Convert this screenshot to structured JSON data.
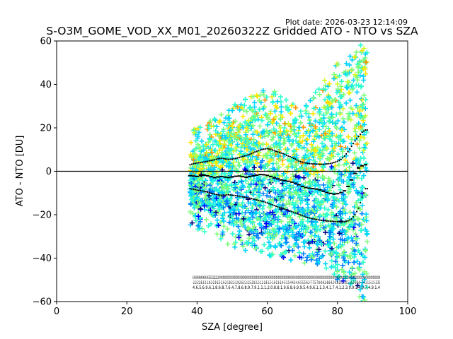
{
  "chart_data": {
    "type": "scatter",
    "plot_date": "Plot date: 2026-03-23 12:14:09",
    "title": "S-O3M_GOME_VOD_XX_M01_20260322Z Gridded ATO - NTO vs SZA",
    "xlabel": "SZA [degree]",
    "ylabel": "ATO - NTO [DU]",
    "xlim": [
      0,
      100
    ],
    "ylim": [
      -60,
      60
    ],
    "xticks": [
      "0",
      "20",
      "40",
      "60",
      "80",
      "100"
    ],
    "yticks": [
      "60",
      "40",
      "20",
      "0",
      "−20",
      "−40",
      "−60"
    ],
    "grid": false,
    "marker": "plus",
    "colormap": [
      "#00007f",
      "#0000ff",
      "#0080ff",
      "#00d4ff",
      "#29ffce",
      "#7dff7a",
      "#ceff29",
      "#ffe600",
      "#ff9400"
    ],
    "zero_line": 0,
    "scatter_extent": {
      "x": [
        38,
        88.5
      ],
      "core_upper": [
        [
          38,
          8
        ],
        [
          50,
          20
        ],
        [
          60,
          30
        ],
        [
          70,
          18
        ],
        [
          75,
          30
        ],
        [
          80,
          40
        ],
        [
          85,
          45
        ],
        [
          88,
          55
        ]
      ],
      "core_lower": [
        [
          38,
          -15
        ],
        [
          50,
          -25
        ],
        [
          60,
          -30
        ],
        [
          70,
          -32
        ],
        [
          75,
          -35
        ],
        [
          80,
          -40
        ],
        [
          85,
          -45
        ],
        [
          88,
          -55
        ]
      ]
    },
    "series": [
      {
        "role": "mean",
        "x": [
          38,
          39,
          40,
          41,
          42,
          43,
          44,
          45,
          46,
          47,
          48,
          49,
          50,
          51,
          52,
          53,
          54,
          55,
          56,
          57,
          58,
          59,
          60,
          61,
          62,
          63,
          64,
          65,
          66,
          67,
          68,
          69,
          70,
          71,
          72,
          73,
          74,
          75,
          76,
          77,
          78,
          79,
          80,
          81,
          82,
          83,
          84,
          85,
          86,
          87,
          88
        ],
        "y": [
          -2,
          -2.2,
          -2.4,
          -2,
          -1.8,
          -2.1,
          -2.5,
          -2.9,
          -2.6,
          -2.4,
          -2.7,
          -2.9,
          -2.6,
          -2.3,
          -2.2,
          -2.5,
          -2.8,
          -2.4,
          -2.1,
          -1.8,
          -1.5,
          -1.6,
          -1.9,
          -2.4,
          -3,
          -3.5,
          -4,
          -4.3,
          -4.6,
          -5,
          -5.5,
          -6.2,
          -7,
          -7.5,
          -7.8,
          -8,
          -8.2,
          -8.6,
          -9.2,
          -9.8,
          -10.2,
          -10.5,
          -10.3,
          -9.8,
          -9,
          -7,
          -4,
          -1,
          1.5,
          2.5,
          3
        ]
      },
      {
        "role": "mean + 1 sigma",
        "x": [
          38,
          39,
          40,
          41,
          42,
          43,
          44,
          45,
          46,
          47,
          48,
          49,
          50,
          51,
          52,
          53,
          54,
          55,
          56,
          57,
          58,
          59,
          60,
          61,
          62,
          63,
          64,
          65,
          66,
          67,
          68,
          69,
          70,
          71,
          72,
          73,
          74,
          75,
          76,
          77,
          78,
          79,
          80,
          81,
          82,
          83,
          84,
          85,
          86,
          87,
          88
        ],
        "y": [
          3,
          3.5,
          3.8,
          4,
          4.3,
          4.6,
          5,
          5.3,
          5.8,
          6,
          5.7,
          5.5,
          5.6,
          5.9,
          6.3,
          6.8,
          7.3,
          7.8,
          8.5,
          9.2,
          9.8,
          10.2,
          10.4,
          10.1,
          9.5,
          8.9,
          8.4,
          7.8,
          7,
          6.4,
          5.6,
          4.7,
          4.2,
          3.8,
          3.5,
          3.4,
          3.3,
          3.2,
          3.2,
          3.4,
          3.6,
          4,
          4.6,
          5.5,
          7,
          9,
          11.5,
          14,
          16,
          18,
          19
        ]
      },
      {
        "role": "mean - 1 sigma",
        "x": [
          38,
          39,
          40,
          41,
          42,
          43,
          44,
          45,
          46,
          47,
          48,
          49,
          50,
          51,
          52,
          53,
          54,
          55,
          56,
          57,
          58,
          59,
          60,
          61,
          62,
          63,
          64,
          65,
          66,
          67,
          68,
          69,
          70,
          71,
          72,
          73,
          74,
          75,
          76,
          77,
          78,
          79,
          80,
          81,
          82,
          83,
          84,
          85,
          86,
          87,
          88
        ],
        "y": [
          -8,
          -8.3,
          -8.7,
          -8.9,
          -9.2,
          -9.6,
          -10.1,
          -10.5,
          -10.9,
          -11.1,
          -11,
          -10.8,
          -11,
          -11.2,
          -11.5,
          -11.8,
          -12.1,
          -12.4,
          -12.8,
          -13.2,
          -13.6,
          -14,
          -14.6,
          -15.2,
          -15.8,
          -16.4,
          -16.9,
          -17.4,
          -18,
          -18.6,
          -19.2,
          -19.8,
          -20.4,
          -21,
          -21.5,
          -21.9,
          -22.2,
          -22.5,
          -22.7,
          -22.9,
          -23,
          -23.1,
          -23.2,
          -23.3,
          -23.3,
          -22.8,
          -22,
          -20,
          -17,
          -12,
          -8
        ]
      }
    ],
    "annotation_rows": [
      "434340494040434355332222200000000000000000000000000000000000000000000000000000000000000000000000000000000000000000000000000000000000000000000000000000000000000000000000000000000008",
      "-2.2-21.8-2-2-1.8-2-2.9-2.5-2.6-2-1.8-2.2-2.9-2.6-2.2-2.5-2.8-2.2-2.1-1.8-1.5-1.6-1.9-2.4-3-3.5-4-4.3-4.6-5-5.5-6.2-7-7.5-7.8-8-8.2-8.6-9.2-9.8-10.2-10.5-10.3-9.8-9-7-4-1-1.5-2.5-3.35",
      "4.6.5.6.9.6.1.8.6.8.7.6.4.7.8.6.8.9.7.9.1.1.1.2.0.8.8.1.0.6.8.6.9.9.5.4.9.6.1.1.3.4.1.7.4.1.2.3.9.9.1.4.9.7.4.9.1.4"
    ]
  }
}
